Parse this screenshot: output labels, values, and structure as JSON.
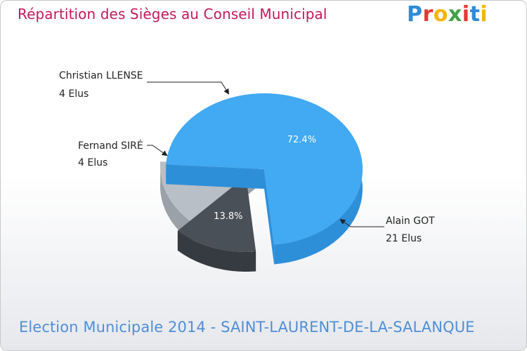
{
  "header": {
    "title": "Répartition des Sièges au Conseil Municipal",
    "logo": [
      "P",
      "r",
      "o",
      "x",
      "i",
      "t",
      "i"
    ]
  },
  "footer": {
    "subtitle": "Election Municipale 2014 - SAINT-LAURENT-DE-LA-SALANQUE"
  },
  "colors": {
    "title": "#c2185b",
    "subtitle": "#4f8fd6",
    "logo": [
      "#2e8bd8",
      "#e53935",
      "#f4b400",
      "#43a047",
      "#e53935",
      "#2e8bd8",
      "#f4b400"
    ]
  },
  "chart_data": {
    "type": "pie",
    "style": "3d",
    "slices": [
      {
        "name": "Alain GOT",
        "seats": 21,
        "seats_label": "21 Elus",
        "percent": 72.4,
        "percent_label": "72.4%",
        "color": "#42a9f3",
        "side_color": "#2e8fd9"
      },
      {
        "name": "Fernand SIRÉ",
        "seats": 4,
        "seats_label": "4 Elus",
        "percent": 13.8,
        "percent_label": "13.8%",
        "color": "#4a5058",
        "side_color": "#363b42"
      },
      {
        "name": "Christian LLENSE",
        "seats": 4,
        "seats_label": "4 Elus",
        "percent": 13.8,
        "percent_label": "13.8%",
        "color": "#b8bfc6",
        "side_color": "#9aa1a8"
      }
    ]
  }
}
